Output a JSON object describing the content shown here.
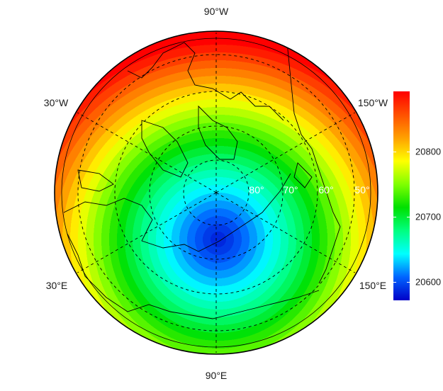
{
  "map": {
    "projection": "north polar",
    "longitude_labels": {
      "top": "90°W",
      "upper_left": "30°W",
      "upper_right": "150°W",
      "lower_left": "30°E",
      "lower_right": "150°E",
      "bottom": "90°E"
    },
    "latitude_labels": [
      "80°",
      "70°",
      "60°",
      "50°"
    ],
    "field_minimum_region": "off-pole, toward 90°E",
    "coastlines": true,
    "graticule_style": "dashed"
  },
  "colorbar": {
    "palette": [
      "#0000c8",
      "#0064ff",
      "#00ffff",
      "#00ff80",
      "#00e000",
      "#80ff00",
      "#ffff00",
      "#ffa000",
      "#ff5000",
      "#ff0000"
    ],
    "range": [
      20572,
      20892
    ],
    "ticks": [
      "20600",
      "20700",
      "20800"
    ],
    "tick_values": [
      20600,
      20700,
      20800
    ]
  }
}
